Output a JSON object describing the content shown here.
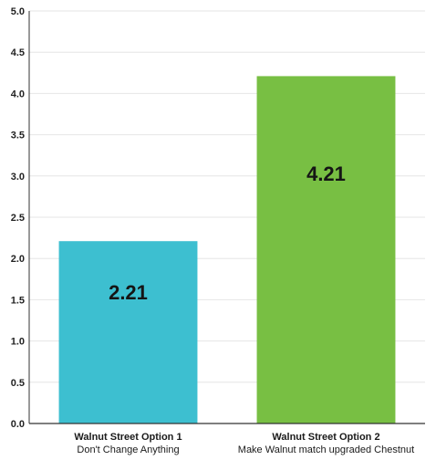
{
  "chart_data": {
    "type": "bar",
    "title": "",
    "xlabel": "",
    "ylabel": "",
    "ylim": [
      0,
      5
    ],
    "y_ticks": [
      "0.0",
      "0.5",
      "1.0",
      "1.5",
      "2.0",
      "2.5",
      "3.0",
      "3.5",
      "4.0",
      "4.5",
      "5.0"
    ],
    "y_tick_values": [
      0,
      0.5,
      1,
      1.5,
      2,
      2.5,
      3,
      3.5,
      4,
      4.5,
      5
    ],
    "grid": true,
    "categories": [
      {
        "name": "Walnut Street Option 1",
        "subtitle": "Don't Change Anything"
      },
      {
        "name": "Walnut Street Option 2",
        "subtitle": "Make Walnut match upgraded Chestnut"
      }
    ],
    "values": [
      2.21,
      4.21
    ],
    "data_labels": [
      "2.21",
      "4.21"
    ],
    "colors": [
      "#3dbfd0",
      "#78bf43"
    ]
  }
}
